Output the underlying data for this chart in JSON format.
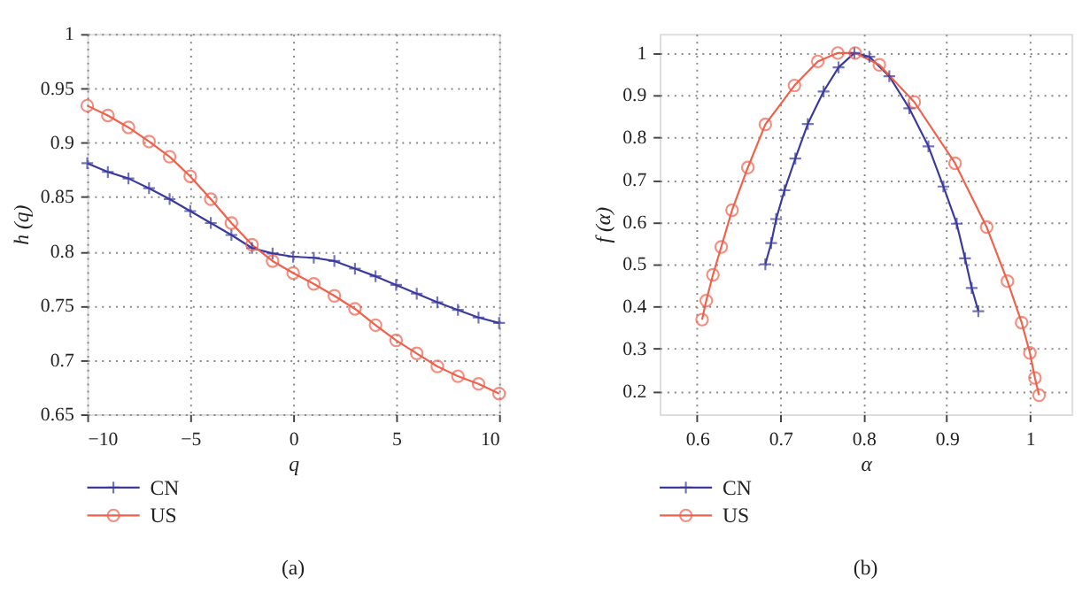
{
  "chart_data": [
    {
      "type": "line",
      "xlabel": "q",
      "ylabel": "h (q)",
      "xlim": [
        -10,
        10
      ],
      "ylim": [
        0.65,
        1
      ],
      "xticks": [
        {
          "value": -10,
          "label": "−10"
        },
        {
          "value": -5,
          "label": "−5"
        },
        0,
        5,
        10
      ],
      "yticks": [
        0.65,
        0.7,
        0.75,
        0.8,
        0.85,
        0.9,
        0.95,
        1
      ],
      "grid": true,
      "legend": "bottom left",
      "line_style": "solid",
      "annotations": [
        "(a)"
      ],
      "x": [
        -10,
        -9,
        -8,
        -7,
        -6,
        -5,
        -4,
        -3,
        -2,
        -1,
        0,
        1,
        2,
        3,
        4,
        5,
        6,
        7,
        8,
        9,
        10
      ],
      "series": [
        {
          "name": "CN",
          "color": "#3a3a9e",
          "marker": "cross",
          "values": [
            0.881,
            0.873,
            0.867,
            0.858,
            0.848,
            0.837,
            0.826,
            0.815,
            0.803,
            0.798,
            0.795,
            0.794,
            0.791,
            0.784,
            0.777,
            0.769,
            0.761,
            0.753,
            0.746,
            0.739,
            0.734
          ]
        },
        {
          "name": "US",
          "color": "#f0604a",
          "marker": "circle",
          "values": [
            0.934,
            0.925,
            0.914,
            0.901,
            0.887,
            0.869,
            0.848,
            0.826,
            0.806,
            0.791,
            0.78,
            0.77,
            0.759,
            0.747,
            0.732,
            0.718,
            0.706,
            0.694,
            0.685,
            0.678,
            0.669
          ]
        }
      ]
    },
    {
      "type": "line",
      "xlabel": "α",
      "ylabel": "f (α)",
      "xlim": [
        0.555,
        1.05
      ],
      "ylim": [
        0.145,
        1.045
      ],
      "xticks": [
        0.6,
        0.7,
        0.8,
        0.9,
        {
          "value": 1,
          "label": "1"
        }
      ],
      "yticks": [
        0.2,
        0.3,
        0.4,
        0.5,
        0.6,
        0.7,
        0.8,
        0.9,
        {
          "value": 1,
          "label": "1"
        }
      ],
      "grid": true,
      "legend": "bottom left",
      "line_style": "solid",
      "annotations": [
        "(b)"
      ],
      "series": [
        {
          "name": "CN",
          "color": "#3a3a9e",
          "marker": "cross",
          "x": [
            0.682,
            0.689,
            0.695,
            0.705,
            0.718,
            0.733,
            0.752,
            0.77,
            0.789,
            0.807,
            0.831,
            0.855,
            0.878,
            0.896,
            0.912,
            0.922,
            0.93,
            0.938
          ],
          "values": [
            0.5,
            0.55,
            0.607,
            0.675,
            0.75,
            0.832,
            0.909,
            0.966,
            1.0,
            0.991,
            0.945,
            0.869,
            0.779,
            0.684,
            0.596,
            0.514,
            0.444,
            0.389
          ]
        },
        {
          "name": "US",
          "color": "#f0604a",
          "marker": "circle",
          "x": [
            0.606,
            0.611,
            0.619,
            0.629,
            0.642,
            0.661,
            0.682,
            0.717,
            0.745,
            0.769,
            0.79,
            0.819,
            0.861,
            0.91,
            0.948,
            0.973,
            0.99,
            1.0,
            1.006,
            1.011
          ],
          "values": [
            0.369,
            0.414,
            0.475,
            0.541,
            0.628,
            0.729,
            0.831,
            0.923,
            0.98,
            1.0,
            1.0,
            0.972,
            0.884,
            0.739,
            0.588,
            0.46,
            0.362,
            0.29,
            0.231,
            0.19
          ]
        }
      ]
    }
  ]
}
